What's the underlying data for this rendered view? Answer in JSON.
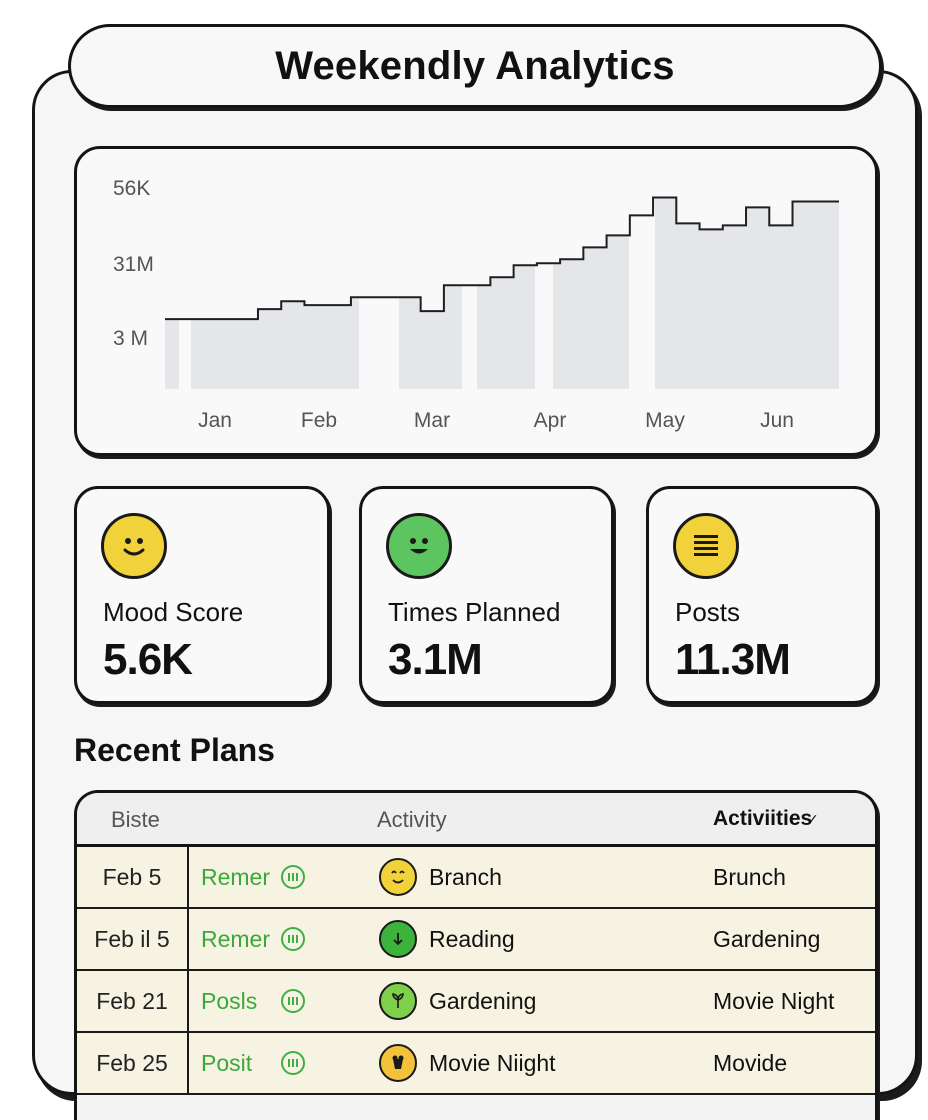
{
  "app": {
    "title": "Weekendly Analytics"
  },
  "chart_data": {
    "type": "area",
    "x_tick_labels": [
      "Jan",
      "Feb",
      "Mar",
      "Apr",
      "May",
      "Jun"
    ],
    "y_tick_labels": [
      "56K",
      "31M",
      "3 M"
    ],
    "series": [
      {
        "values": [
          3.0,
          3.0,
          3.0,
          3.0,
          3.5,
          3.9,
          3.7,
          3.7,
          4.1,
          4.1,
          4.1,
          3.4,
          4.7,
          4.7,
          5.1,
          5.7,
          5.8,
          6.0,
          6.6,
          7.2,
          8.2,
          9.1,
          7.8,
          7.5,
          7.7,
          8.6,
          7.7,
          8.9,
          8.9
        ],
        "color": "#1f1f1f"
      }
    ],
    "grid": false,
    "legend": "none"
  },
  "stats": [
    {
      "label": "Mood Score",
      "value": "5.6K",
      "icon": "smiley-face-icon",
      "color": "#f2d23a"
    },
    {
      "label": "Times Planned",
      "value": "3.1M",
      "icon": "smiley-face-icon",
      "color": "#5cc560"
    },
    {
      "label": "Posts",
      "value": "11.3M",
      "icon": "list-lines-icon",
      "color": "#f2d23a"
    }
  ],
  "recent": {
    "title": "Recent Plans",
    "columns": [
      "Biste",
      "Activity",
      "Activiities"
    ],
    "rows": [
      {
        "date": "Feb 5",
        "status": "Remer",
        "activity": "Branch",
        "category": "Brunch",
        "icon": "face-icon",
        "icon_color": "#f2d23a"
      },
      {
        "date": "Feb il 5",
        "status": "Remer",
        "activity": "Reading",
        "category": "Gardening",
        "icon": "leaf-icon",
        "icon_color": "#3cb43c"
      },
      {
        "date": "Feb 21",
        "status": "Posls",
        "activity": "Gardening",
        "category": "Movie Night",
        "icon": "sprout-icon",
        "icon_color": "#7ed04a"
      },
      {
        "date": "Feb 25",
        "status": "Posit",
        "activity": "Movie Niight",
        "category": "Movide",
        "icon": "popcorn-icon",
        "icon_color": "#f2c23a"
      }
    ]
  },
  "colors": {
    "accent_green": "#3aa93a",
    "row_bg": "#f7f3e2"
  }
}
